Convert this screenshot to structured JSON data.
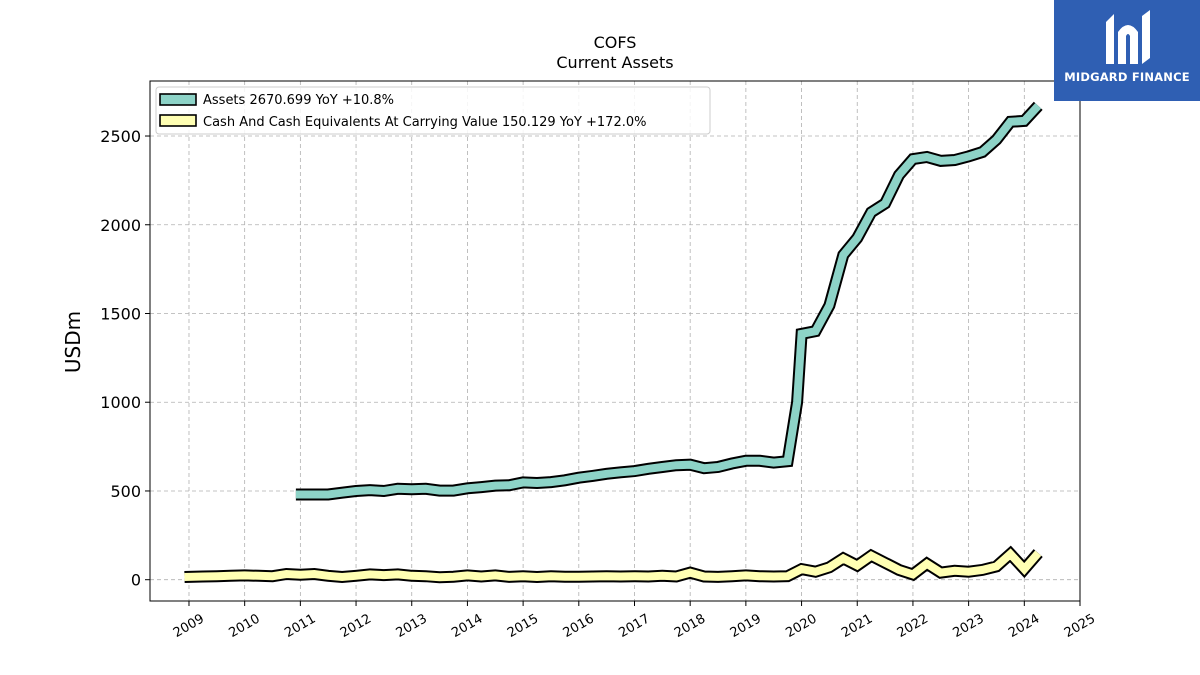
{
  "chart_data": {
    "type": "line",
    "title": "COFS",
    "subtitle": "Current  Assets",
    "ylabel": "USDm",
    "xlabel": "",
    "xlim": [
      2008.3,
      2025.0
    ],
    "ylim": [
      -120,
      2810
    ],
    "yticks": [
      0,
      500,
      1000,
      1500,
      2000,
      2500
    ],
    "xticks": [
      2009,
      2010,
      2011,
      2012,
      2013,
      2014,
      2015,
      2016,
      2017,
      2018,
      2019,
      2020,
      2021,
      2022,
      2023,
      2024,
      2025
    ],
    "grid": true,
    "legend_position": "top-left",
    "series": [
      {
        "name": "Assets  2670.699 YoY +10.8%",
        "color": "#8dd3c7",
        "x": [
          2010.92,
          2011.25,
          2011.5,
          2011.75,
          2012.0,
          2012.25,
          2012.5,
          2012.75,
          2013.0,
          2013.25,
          2013.5,
          2013.75,
          2014.0,
          2014.25,
          2014.5,
          2014.75,
          2015.0,
          2015.25,
          2015.5,
          2015.75,
          2016.0,
          2016.25,
          2016.5,
          2016.75,
          2017.0,
          2017.25,
          2017.5,
          2017.75,
          2018.0,
          2018.25,
          2018.5,
          2018.75,
          2019.0,
          2019.25,
          2019.5,
          2019.75,
          2019.92,
          2020.0,
          2020.25,
          2020.5,
          2020.75,
          2021.0,
          2021.25,
          2021.5,
          2021.75,
          2022.0,
          2022.25,
          2022.5,
          2022.75,
          2023.0,
          2023.25,
          2023.5,
          2023.75,
          2024.0,
          2024.25
        ],
        "values": [
          480,
          480,
          480,
          490,
          500,
          505,
          500,
          512,
          510,
          512,
          502,
          502,
          515,
          522,
          530,
          532,
          548,
          545,
          550,
          560,
          575,
          585,
          597,
          605,
          612,
          625,
          635,
          645,
          648,
          628,
          635,
          655,
          670,
          670,
          660,
          668,
          1000,
          1385,
          1400,
          1545,
          1830,
          1925,
          2070,
          2120,
          2280,
          2370,
          2382,
          2360,
          2365,
          2385,
          2410,
          2480,
          2580,
          2585,
          2670
        ]
      },
      {
        "name": "Cash And Cash Equivalents At Carrying Value  150.129 YoY +172.0%",
        "color": "#ffffb3",
        "x": [
          2008.92,
          2009.25,
          2009.5,
          2009.75,
          2010.0,
          2010.25,
          2010.5,
          2010.75,
          2011.0,
          2011.25,
          2011.5,
          2011.75,
          2012.0,
          2012.25,
          2012.5,
          2012.75,
          2013.0,
          2013.25,
          2013.5,
          2013.75,
          2014.0,
          2014.25,
          2014.5,
          2014.75,
          2015.0,
          2015.25,
          2015.5,
          2015.75,
          2016.0,
          2016.25,
          2016.5,
          2016.75,
          2017.0,
          2017.25,
          2017.5,
          2017.75,
          2018.0,
          2018.25,
          2018.5,
          2018.75,
          2019.0,
          2019.25,
          2019.5,
          2019.75,
          2020.0,
          2020.25,
          2020.5,
          2020.75,
          2021.0,
          2021.25,
          2021.5,
          2021.75,
          2022.0,
          2022.25,
          2022.5,
          2022.75,
          2023.0,
          2023.25,
          2023.5,
          2023.75,
          2024.0,
          2024.25
        ],
        "values": [
          15,
          18,
          20,
          22,
          24,
          22,
          20,
          32,
          28,
          32,
          22,
          15,
          22,
          30,
          26,
          30,
          22,
          20,
          14,
          17,
          24,
          18,
          24,
          16,
          20,
          15,
          20,
          17,
          17,
          18,
          19,
          18,
          20,
          18,
          22,
          18,
          40,
          18,
          16,
          20,
          24,
          20,
          18,
          20,
          60,
          45,
          70,
          120,
          80,
          135,
          95,
          55,
          30,
          90,
          40,
          50,
          45,
          55,
          75,
          145,
          60,
          150
        ]
      }
    ]
  },
  "logo": {
    "text": "MIDGARD FINANCE",
    "color": "#2f5fb3"
  }
}
